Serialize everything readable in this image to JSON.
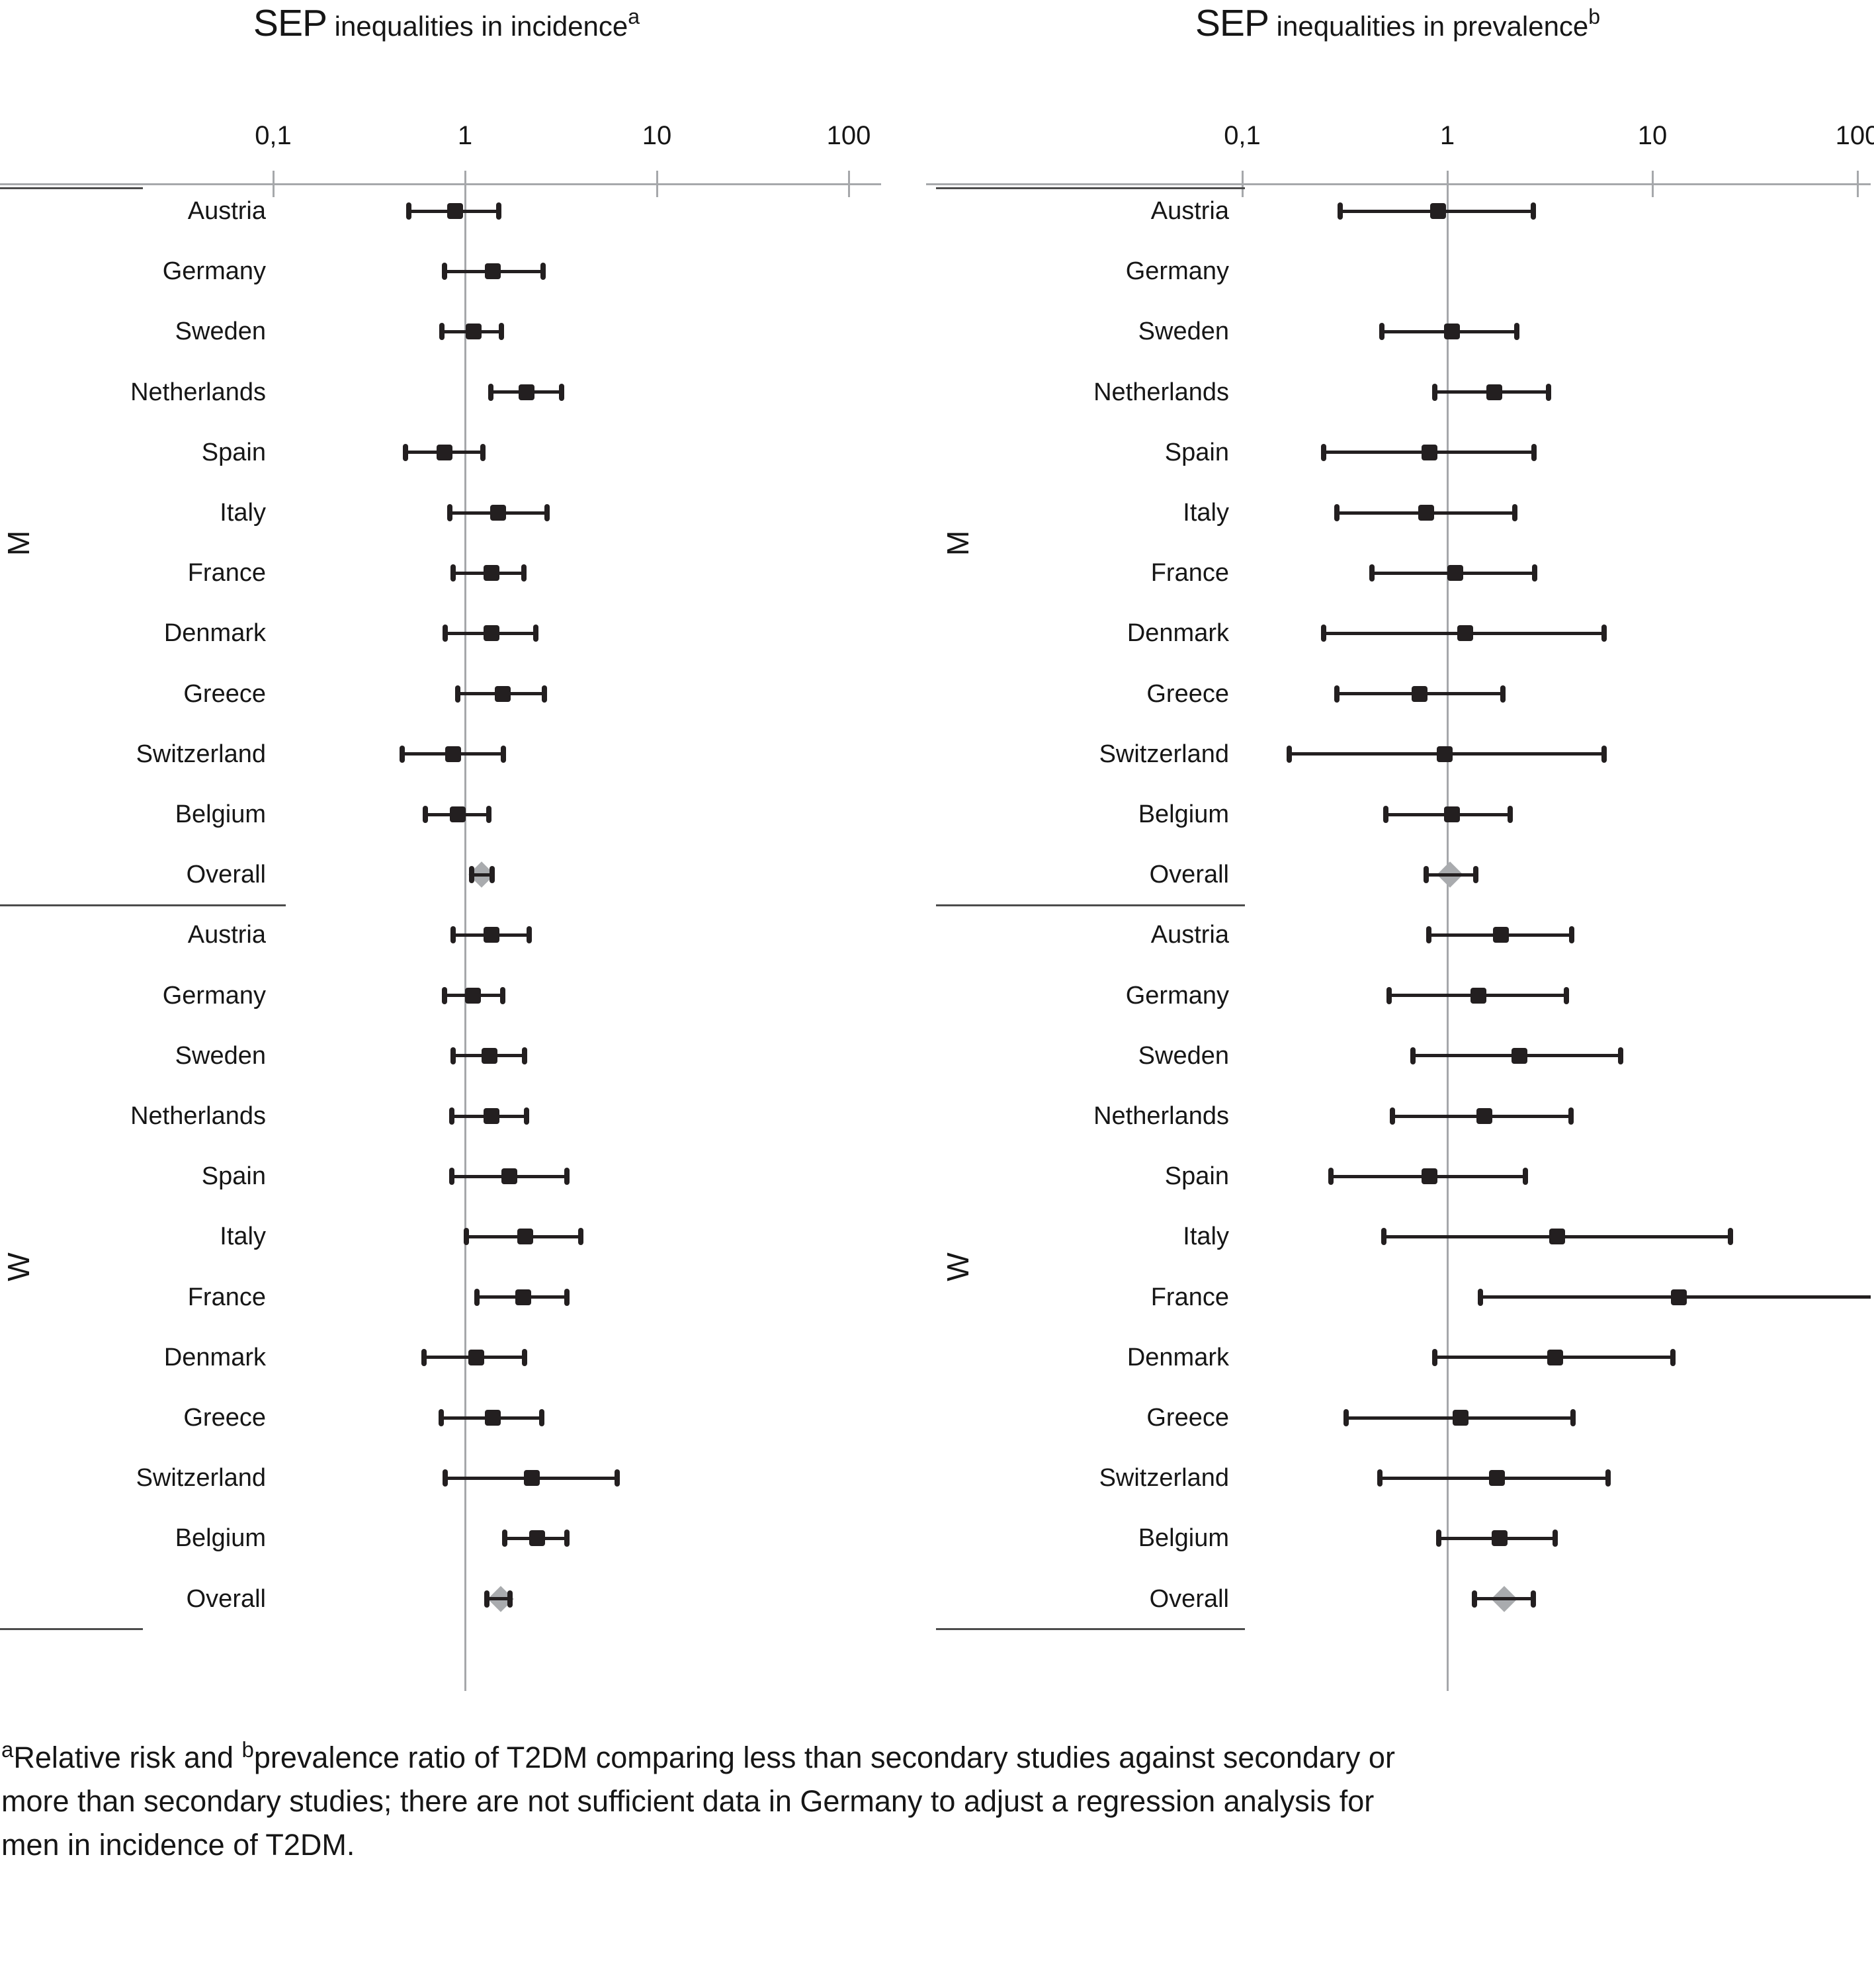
{
  "figure": {
    "footnote": {
      "sup_a": "a",
      "line1_part1": "Relative risk and ",
      "sup_b": "b",
      "line1_part2": "prevalence ratio of T2DM comparing less than secondary studies against secondary or",
      "line2": "more than secondary studies; there are not sufficient data in Germany to adjust a regression analysis for",
      "line3": "men in incidence of T2DM."
    }
  },
  "colors": {
    "marker": "#231f20",
    "diamond": "#a9abae",
    "axis": "#a6a8ab",
    "separator": "#4c4c4c",
    "text": "#161616"
  },
  "chart_data": {
    "type": "forest",
    "x_scale": "log10",
    "x_range": [
      0.1,
      100
    ],
    "x_ticks": [
      "0,1",
      "1",
      "10",
      "100"
    ],
    "x_tick_values": [
      0.1,
      1,
      10,
      100
    ],
    "reference_line": 1,
    "group_labels": [
      "M",
      "W"
    ],
    "panels": [
      {
        "title_main": "SEP",
        "title_rest": " inequalities in incidence",
        "title_sup": "a",
        "groups": [
          {
            "label": "M",
            "rows": [
              {
                "country": "Austria",
                "est": 0.89,
                "lo": 0.51,
                "hi": 1.5,
                "marker": "square"
              },
              {
                "country": "Germany",
                "est": 1.4,
                "lo": 0.78,
                "hi": 2.55,
                "marker": "square"
              },
              {
                "country": "Sweden",
                "est": 1.11,
                "lo": 0.76,
                "hi": 1.55,
                "marker": "square"
              },
              {
                "country": "Netherlands",
                "est": 2.1,
                "lo": 1.36,
                "hi": 3.2,
                "marker": "square"
              },
              {
                "country": "Spain",
                "est": 0.78,
                "lo": 0.49,
                "hi": 1.24,
                "marker": "square"
              },
              {
                "country": "Italy",
                "est": 1.49,
                "lo": 0.83,
                "hi": 2.68,
                "marker": "square"
              },
              {
                "country": "France",
                "est": 1.37,
                "lo": 0.87,
                "hi": 2.03,
                "marker": "square"
              },
              {
                "country": "Denmark",
                "est": 1.37,
                "lo": 0.79,
                "hi": 2.34,
                "marker": "square"
              },
              {
                "country": "Greece",
                "est": 1.57,
                "lo": 0.92,
                "hi": 2.59,
                "marker": "square"
              },
              {
                "country": "Switzerland",
                "est": 0.87,
                "lo": 0.47,
                "hi": 1.58,
                "marker": "square"
              },
              {
                "country": "Belgium",
                "est": 0.92,
                "lo": 0.62,
                "hi": 1.33,
                "marker": "square"
              },
              {
                "country": "Overall",
                "est": 1.22,
                "lo": 1.08,
                "hi": 1.38,
                "marker": "diamond"
              }
            ]
          },
          {
            "label": "W",
            "rows": [
              {
                "country": "Austria",
                "est": 1.37,
                "lo": 0.87,
                "hi": 2.16,
                "marker": "square"
              },
              {
                "country": "Germany",
                "est": 1.1,
                "lo": 0.78,
                "hi": 1.57,
                "marker": "square"
              },
              {
                "country": "Sweden",
                "est": 1.34,
                "lo": 0.87,
                "hi": 2.04,
                "marker": "square"
              },
              {
                "country": "Netherlands",
                "est": 1.37,
                "lo": 0.85,
                "hi": 2.09,
                "marker": "square"
              },
              {
                "country": "Spain",
                "est": 1.7,
                "lo": 0.85,
                "hi": 3.39,
                "marker": "square"
              },
              {
                "country": "Italy",
                "est": 2.06,
                "lo": 1.02,
                "hi": 4.02,
                "marker": "square"
              },
              {
                "country": "France",
                "est": 2.01,
                "lo": 1.15,
                "hi": 3.39,
                "marker": "square"
              },
              {
                "country": "Denmark",
                "est": 1.14,
                "lo": 0.61,
                "hi": 2.04,
                "marker": "square"
              },
              {
                "country": "Greece",
                "est": 1.4,
                "lo": 0.75,
                "hi": 2.51,
                "marker": "square"
              },
              {
                "country": "Switzerland",
                "est": 2.23,
                "lo": 0.79,
                "hi": 6.2,
                "marker": "square"
              },
              {
                "country": "Belgium",
                "est": 2.38,
                "lo": 1.61,
                "hi": 3.39,
                "marker": "square"
              },
              {
                "country": "Overall",
                "est": 1.53,
                "lo": 1.3,
                "hi": 1.72,
                "marker": "diamond"
              }
            ]
          }
        ]
      },
      {
        "title_main": "SEP",
        "title_rest": " inequalities in prevalence",
        "title_sup": "b",
        "groups": [
          {
            "label": "M",
            "rows": [
              {
                "country": "Austria",
                "est": 0.9,
                "lo": 0.3,
                "hi": 2.62,
                "marker": "square"
              },
              {
                "country": "Germany",
                "est": null,
                "lo": null,
                "hi": null,
                "marker": "none"
              },
              {
                "country": "Sweden",
                "est": 1.05,
                "lo": 0.48,
                "hi": 2.18,
                "marker": "square"
              },
              {
                "country": "Netherlands",
                "est": 1.69,
                "lo": 0.87,
                "hi": 3.12,
                "marker": "square"
              },
              {
                "country": "Spain",
                "est": 0.82,
                "lo": 0.25,
                "hi": 2.64,
                "marker": "square"
              },
              {
                "country": "Italy",
                "est": 0.79,
                "lo": 0.29,
                "hi": 2.13,
                "marker": "square"
              },
              {
                "country": "France",
                "est": 1.09,
                "lo": 0.43,
                "hi": 2.66,
                "marker": "square"
              },
              {
                "country": "Denmark",
                "est": 1.22,
                "lo": 0.25,
                "hi": 5.8,
                "marker": "square"
              },
              {
                "country": "Greece",
                "est": 0.73,
                "lo": 0.29,
                "hi": 1.86,
                "marker": "square"
              },
              {
                "country": "Switzerland",
                "est": 0.97,
                "lo": 0.17,
                "hi": 5.8,
                "marker": "square"
              },
              {
                "country": "Belgium",
                "est": 1.05,
                "lo": 0.5,
                "hi": 2.03,
                "marker": "square"
              },
              {
                "country": "Overall",
                "est": 1.03,
                "lo": 0.79,
                "hi": 1.38,
                "marker": "diamond"
              }
            ]
          },
          {
            "label": "W",
            "rows": [
              {
                "country": "Austria",
                "est": 1.82,
                "lo": 0.81,
                "hi": 4.05,
                "marker": "square"
              },
              {
                "country": "Germany",
                "est": 1.42,
                "lo": 0.52,
                "hi": 3.81,
                "marker": "square"
              },
              {
                "country": "Sweden",
                "est": 2.24,
                "lo": 0.68,
                "hi": 7.0,
                "marker": "square"
              },
              {
                "country": "Netherlands",
                "est": 1.52,
                "lo": 0.54,
                "hi": 4.0,
                "marker": "square"
              },
              {
                "country": "Spain",
                "est": 0.82,
                "lo": 0.27,
                "hi": 2.4,
                "marker": "square"
              },
              {
                "country": "Italy",
                "est": 3.43,
                "lo": 0.49,
                "hi": 24.0,
                "marker": "square"
              },
              {
                "country": "France",
                "est": 13.5,
                "lo": 1.45,
                "hi": null,
                "marker": "square",
                "hi_clipped": true
              },
              {
                "country": "Denmark",
                "est": 3.36,
                "lo": 0.87,
                "hi": 12.6,
                "marker": "square"
              },
              {
                "country": "Greece",
                "est": 1.16,
                "lo": 0.32,
                "hi": 4.1,
                "marker": "square"
              },
              {
                "country": "Switzerland",
                "est": 1.74,
                "lo": 0.47,
                "hi": 6.1,
                "marker": "square"
              },
              {
                "country": "Belgium",
                "est": 1.8,
                "lo": 0.91,
                "hi": 3.36,
                "marker": "square"
              },
              {
                "country": "Overall",
                "est": 1.89,
                "lo": 1.36,
                "hi": 2.62,
                "marker": "diamond"
              }
            ]
          }
        ]
      }
    ]
  }
}
